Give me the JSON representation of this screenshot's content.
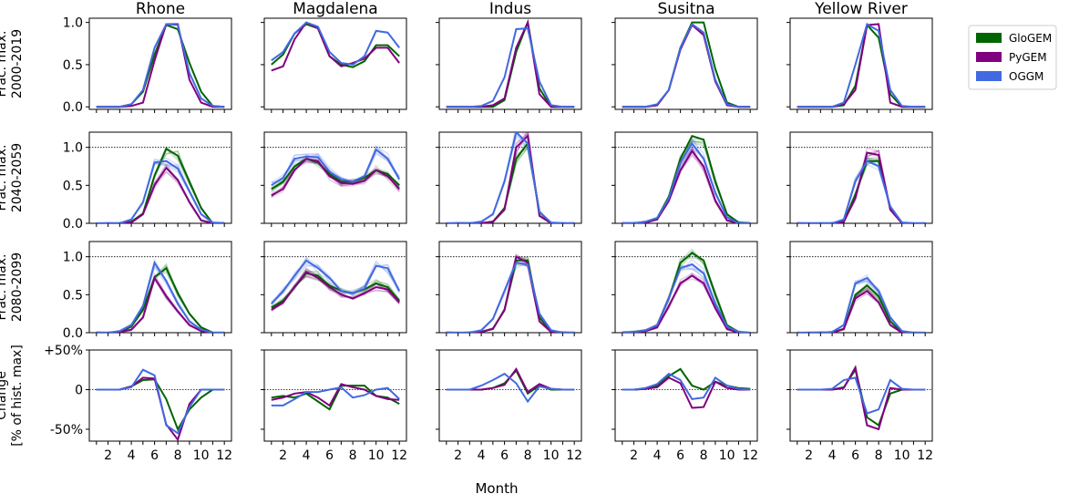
{
  "chart_data": {
    "type": "line",
    "xlabel": "Month",
    "x": [
      1,
      2,
      3,
      4,
      5,
      6,
      7,
      8,
      9,
      10,
      11,
      12
    ],
    "x_ticks": [
      "2",
      "4",
      "6",
      "8",
      "10",
      "12"
    ],
    "basins": [
      "Rhone",
      "Magdalena",
      "Indus",
      "Susitna",
      "Yellow River"
    ],
    "rows": [
      {
        "ylabel": [
          "Frac. max.",
          "2000-2019"
        ],
        "ylim": [
          -0.03,
          1.05
        ],
        "yticks": [
          "0.0",
          "0.5",
          "1.0"
        ],
        "ytick_values": [
          0,
          0.5,
          1.0
        ]
      },
      {
        "ylabel": [
          "Frac. max.",
          "2040-2059"
        ],
        "ylim": [
          0,
          1.2
        ],
        "yticks": [
          "0.0",
          "0.5",
          "1.0"
        ],
        "ytick_values": [
          0,
          0.5,
          1.0
        ]
      },
      {
        "ylabel": [
          "Frac. max.",
          "2080-2099"
        ],
        "ylim": [
          0,
          1.2
        ],
        "yticks": [
          "0.0",
          "0.5",
          "1.0"
        ],
        "ytick_values": [
          0,
          0.5,
          1.0
        ]
      },
      {
        "ylabel": [
          "Change",
          "[% of hist. max]"
        ],
        "ylim": [
          -0.65,
          0.5
        ],
        "yticks": [
          "+50%",
          "0",
          "-50%"
        ],
        "ytick_values": [
          0.5,
          0,
          -0.5
        ]
      }
    ],
    "legend": {
      "position": "top-right",
      "entries": [
        "GloGEM",
        "PyGEM",
        "OGGM"
      ]
    },
    "colors": {
      "GloGEM": "#006400",
      "PyGEM": "#800080",
      "OGGM": "#4169e1"
    },
    "grid": false,
    "reference_lines": {
      "row2": 1.0,
      "row3": 1.0,
      "row4": 0
    },
    "data": {
      "Rhone": [
        {
          "GloGEM": [
            0,
            0,
            0,
            0.03,
            0.18,
            0.62,
            0.97,
            0.92,
            0.52,
            0.18,
            0.01,
            0
          ],
          "PyGEM": [
            0,
            0,
            0,
            0.01,
            0.05,
            0.55,
            0.98,
            0.98,
            0.32,
            0.05,
            0,
            0
          ],
          "OGGM": [
            0,
            0,
            0,
            0.03,
            0.2,
            0.7,
            0.98,
            0.97,
            0.4,
            0.1,
            0.01,
            0
          ]
        },
        {
          "GloGEM": [
            0,
            0,
            0,
            0.02,
            0.13,
            0.63,
            0.98,
            0.89,
            0.55,
            0.2,
            0,
            0
          ],
          "PyGEM": [
            0,
            0,
            0,
            0.01,
            0.12,
            0.5,
            0.73,
            0.57,
            0.28,
            0.04,
            0,
            0
          ],
          "OGGM": [
            0,
            0,
            0,
            0.05,
            0.28,
            0.8,
            0.82,
            0.72,
            0.42,
            0.12,
            0.01,
            0
          ]
        },
        {
          "GloGEM": [
            0,
            0,
            0.01,
            0.08,
            0.3,
            0.73,
            0.85,
            0.52,
            0.25,
            0.07,
            0,
            0
          ],
          "PyGEM": [
            0,
            0,
            0.01,
            0.04,
            0.2,
            0.72,
            0.48,
            0.28,
            0.1,
            0.02,
            0,
            0
          ],
          "OGGM": [
            0,
            0,
            0.02,
            0.1,
            0.35,
            0.92,
            0.68,
            0.38,
            0.15,
            0.04,
            0,
            0
          ]
        },
        {
          "GloGEM": [
            0,
            0,
            0,
            0.04,
            0.12,
            0.13,
            -0.12,
            -0.5,
            -0.25,
            -0.1,
            0,
            0
          ],
          "PyGEM": [
            0,
            0,
            0,
            0.04,
            0.15,
            0.14,
            -0.44,
            -0.63,
            -0.18,
            0,
            0,
            0
          ],
          "OGGM": [
            0,
            0,
            0,
            0.03,
            0.25,
            0.18,
            -0.45,
            -0.55,
            -0.22,
            0,
            0,
            0
          ]
        }
      ],
      "Magdalena": [
        {
          "GloGEM": [
            0.5,
            0.62,
            0.87,
            0.98,
            0.93,
            0.6,
            0.5,
            0.47,
            0.54,
            0.73,
            0.73,
            0.6
          ],
          "PyGEM": [
            0.43,
            0.48,
            0.8,
            1.0,
            0.93,
            0.6,
            0.48,
            0.52,
            0.57,
            0.7,
            0.7,
            0.52
          ],
          "OGGM": [
            0.55,
            0.65,
            0.87,
            1.0,
            0.95,
            0.65,
            0.52,
            0.5,
            0.6,
            0.9,
            0.88,
            0.7
          ]
        },
        {
          "GloGEM": [
            0.45,
            0.55,
            0.75,
            0.85,
            0.8,
            0.65,
            0.55,
            0.55,
            0.6,
            0.7,
            0.65,
            0.5
          ],
          "PyGEM": [
            0.37,
            0.45,
            0.7,
            0.85,
            0.82,
            0.62,
            0.53,
            0.52,
            0.56,
            0.7,
            0.62,
            0.45
          ],
          "OGGM": [
            0.5,
            0.6,
            0.85,
            0.88,
            0.87,
            0.68,
            0.58,
            0.55,
            0.62,
            0.97,
            0.85,
            0.58
          ]
        },
        {
          "GloGEM": [
            0.33,
            0.42,
            0.6,
            0.78,
            0.75,
            0.62,
            0.55,
            0.52,
            0.57,
            0.65,
            0.6,
            0.42
          ],
          "PyGEM": [
            0.3,
            0.4,
            0.6,
            0.8,
            0.72,
            0.6,
            0.5,
            0.45,
            0.52,
            0.6,
            0.57,
            0.4
          ],
          "OGGM": [
            0.38,
            0.55,
            0.75,
            0.95,
            0.85,
            0.72,
            0.55,
            0.52,
            0.58,
            0.88,
            0.85,
            0.55
          ]
        },
        {
          "GloGEM": [
            -0.1,
            -0.08,
            -0.1,
            -0.05,
            -0.15,
            -0.25,
            0.05,
            0.05,
            0.05,
            -0.08,
            -0.1,
            -0.18
          ],
          "PyGEM": [
            -0.13,
            -0.1,
            -0.05,
            -0.03,
            -0.1,
            -0.2,
            0.07,
            0.03,
            0,
            -0.08,
            -0.12,
            -0.13
          ],
          "OGGM": [
            -0.2,
            -0.2,
            -0.12,
            -0.03,
            -0.03,
            0,
            0.03,
            -0.1,
            -0.07,
            0,
            0.02,
            -0.12
          ]
        }
      ],
      "Indus": [
        {
          "GloGEM": [
            0,
            0,
            0,
            0,
            0,
            0.08,
            0.65,
            1.0,
            0.22,
            0,
            0,
            0
          ],
          "PyGEM": [
            0,
            0,
            0,
            0,
            0.02,
            0.1,
            0.7,
            1.0,
            0.15,
            0,
            0,
            0
          ],
          "OGGM": [
            0,
            0,
            0,
            0.01,
            0.07,
            0.35,
            0.92,
            0.93,
            0.3,
            0.02,
            0,
            0
          ]
        },
        {
          "GloGEM": [
            0,
            0,
            0,
            0,
            0.02,
            0.2,
            0.85,
            1.05,
            0.15,
            0,
            0,
            0
          ],
          "PyGEM": [
            0,
            0,
            0,
            0,
            0.02,
            0.18,
            1.0,
            1.15,
            0.1,
            0,
            0,
            0
          ],
          "OGGM": [
            0,
            0,
            0,
            0.02,
            0.12,
            0.55,
            1.2,
            1.05,
            0.15,
            0.01,
            0,
            0
          ]
        },
        {
          "GloGEM": [
            0,
            0,
            0,
            0.01,
            0.05,
            0.3,
            0.95,
            0.95,
            0.2,
            0.02,
            0,
            0
          ],
          "PyGEM": [
            0,
            0,
            0,
            0.01,
            0.05,
            0.3,
            1.0,
            0.92,
            0.15,
            0.01,
            0,
            0
          ],
          "OGGM": [
            0,
            0,
            0,
            0.03,
            0.18,
            0.55,
            0.92,
            0.9,
            0.25,
            0.03,
            0,
            0
          ]
        },
        {
          "GloGEM": [
            0,
            0,
            0,
            0,
            0.02,
            0.08,
            0.24,
            -0.05,
            0.05,
            0,
            0,
            0
          ],
          "PyGEM": [
            0,
            0,
            0,
            0,
            0.02,
            0.06,
            0.26,
            -0.03,
            0.07,
            0.01,
            0,
            0
          ],
          "OGGM": [
            0,
            0,
            0,
            0.05,
            0.12,
            0.2,
            0.08,
            -0.15,
            0.04,
            0.01,
            0,
            0
          ]
        }
      ],
      "Susitna": [
        {
          "GloGEM": [
            0,
            0,
            0,
            0.02,
            0.2,
            0.7,
            1.0,
            1.0,
            0.45,
            0.05,
            0,
            0
          ],
          "PyGEM": [
            0,
            0,
            0,
            0.02,
            0.2,
            0.68,
            0.97,
            0.85,
            0.3,
            0.02,
            0,
            0
          ],
          "OGGM": [
            0,
            0,
            0,
            0.03,
            0.2,
            0.7,
            0.98,
            0.88,
            0.32,
            0.03,
            0,
            0
          ]
        },
        {
          "GloGEM": [
            0,
            0,
            0.02,
            0.07,
            0.35,
            0.85,
            1.15,
            1.1,
            0.55,
            0.12,
            0.01,
            0
          ],
          "PyGEM": [
            0,
            0,
            0.01,
            0.05,
            0.3,
            0.7,
            0.95,
            0.75,
            0.3,
            0.04,
            0,
            0
          ],
          "OGGM": [
            0,
            0,
            0.02,
            0.07,
            0.33,
            0.8,
            1.05,
            0.85,
            0.4,
            0.08,
            0,
            0
          ]
        },
        {
          "GloGEM": [
            0,
            0.01,
            0.03,
            0.1,
            0.45,
            0.92,
            1.05,
            0.95,
            0.5,
            0.1,
            0.01,
            0
          ],
          "PyGEM": [
            0,
            0.01,
            0.02,
            0.07,
            0.35,
            0.65,
            0.75,
            0.65,
            0.32,
            0.05,
            0,
            0
          ],
          "OGGM": [
            0,
            0.01,
            0.03,
            0.1,
            0.45,
            0.85,
            0.9,
            0.78,
            0.38,
            0.08,
            0.01,
            0
          ]
        },
        {
          "GloGEM": [
            0,
            0,
            0.01,
            0.05,
            0.17,
            0.26,
            0.05,
            0,
            0.1,
            0.05,
            0.02,
            0.01
          ],
          "PyGEM": [
            0,
            0,
            0.01,
            0.03,
            0.15,
            0.08,
            -0.23,
            -0.22,
            0.1,
            0.02,
            0,
            0
          ],
          "OGGM": [
            0,
            0,
            0.02,
            0.07,
            0.2,
            0.12,
            -0.12,
            -0.1,
            0.15,
            0.05,
            0.01,
            0
          ]
        }
      ],
      "Yellow River": [
        {
          "GloGEM": [
            0,
            0,
            0,
            0,
            0.02,
            0.25,
            0.97,
            0.82,
            0.15,
            0,
            0,
            0
          ],
          "PyGEM": [
            0,
            0,
            0,
            0,
            0.03,
            0.2,
            0.97,
            0.98,
            0.05,
            0,
            0,
            0
          ],
          "OGGM": [
            0,
            0,
            0,
            0,
            0.05,
            0.5,
            0.98,
            0.9,
            0.2,
            0.01,
            0,
            0
          ]
        },
        {
          "GloGEM": [
            0,
            0,
            0,
            0,
            0.02,
            0.38,
            0.82,
            0.82,
            0.2,
            0,
            0,
            0
          ],
          "PyGEM": [
            0,
            0,
            0,
            0,
            0.02,
            0.33,
            0.93,
            0.9,
            0.18,
            0,
            0,
            0
          ],
          "OGGM": [
            0,
            0,
            0,
            0,
            0.05,
            0.55,
            0.82,
            0.75,
            0.22,
            0.01,
            0,
            0
          ]
        },
        {
          "GloGEM": [
            0,
            0,
            0,
            0,
            0.05,
            0.5,
            0.62,
            0.48,
            0.15,
            0,
            0,
            0
          ],
          "PyGEM": [
            0,
            0,
            0,
            0,
            0.05,
            0.45,
            0.55,
            0.4,
            0.1,
            0,
            0,
            0
          ],
          "OGGM": [
            0,
            0,
            0,
            0.01,
            0.1,
            0.65,
            0.72,
            0.55,
            0.2,
            0.02,
            0,
            0
          ]
        },
        {
          "GloGEM": [
            0,
            0,
            0,
            0,
            0.03,
            0.25,
            -0.35,
            -0.45,
            -0.05,
            0,
            0,
            0
          ],
          "PyGEM": [
            0,
            0,
            0,
            0,
            0.02,
            0.28,
            -0.45,
            -0.5,
            0.02,
            0,
            0,
            0
          ],
          "OGGM": [
            0,
            0,
            0,
            0.01,
            0.12,
            0.15,
            -0.3,
            -0.25,
            0.12,
            0.01,
            0,
            0
          ]
        }
      ]
    }
  }
}
